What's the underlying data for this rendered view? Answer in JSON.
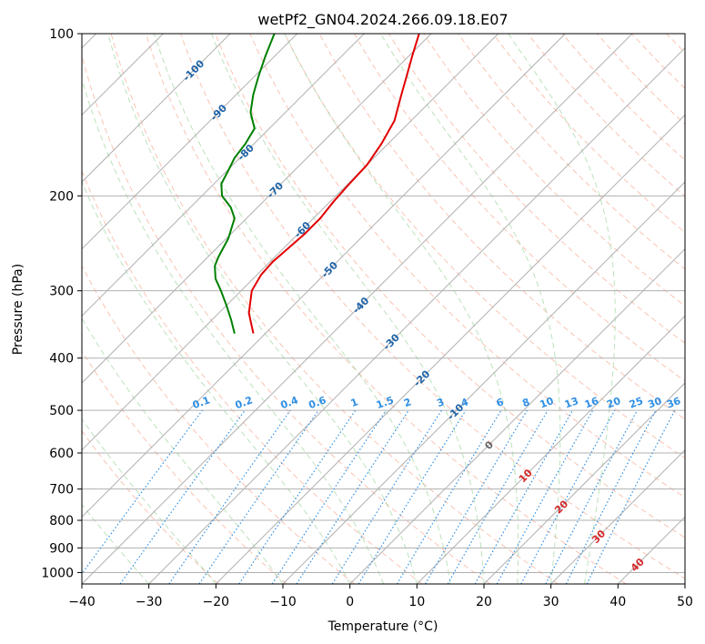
{
  "chart_data": {
    "type": "line",
    "title": "wetPf2_GN04.2024.266.09.18.E07",
    "xlabel": "Temperature (°C)",
    "ylabel": "Pressure (hPa)",
    "xlim": [
      -40,
      50
    ],
    "ylim": [
      1050,
      100
    ],
    "y_scale": "log",
    "x_ticks": [
      -40,
      -30,
      -20,
      -10,
      0,
      10,
      20,
      30,
      40,
      50
    ],
    "x_tick_labels": [
      "−40",
      "−30",
      "−20",
      "−10",
      "0",
      "10",
      "20",
      "30",
      "40",
      "50"
    ],
    "y_ticks": [
      1000,
      900,
      800,
      700,
      600,
      500,
      400,
      300,
      200,
      100
    ],
    "y_tick_labels": [
      "1000",
      "900",
      "800",
      "700",
      "600",
      "500",
      "400",
      "300",
      "200",
      "100"
    ],
    "grid": true,
    "skew": 45,
    "series": [
      {
        "color": "#e00000",
        "p": [
          360,
          330,
          300,
          280,
          265,
          250,
          235,
          220,
          205,
          190,
          175,
          160,
          145,
          130,
          120,
          110,
          100
        ],
        "t": [
          -51.8,
          -55.5,
          -58.4,
          -59.4,
          -59.6,
          -59.3,
          -59.0,
          -59.0,
          -59.5,
          -59.8,
          -60.0,
          -61.0,
          -62.5,
          -65.3,
          -67.3,
          -69.5,
          -71.8
        ]
      },
      {
        "color": "#008000",
        "p": [
          360,
          340,
          320,
          300,
          285,
          270,
          260,
          240,
          220,
          210,
          200,
          190,
          180,
          170,
          160,
          150,
          140,
          130,
          120,
          110,
          100
        ],
        "t": [
          -54.6,
          -57.1,
          -59.9,
          -63.0,
          -65.6,
          -67.6,
          -68.4,
          -69.7,
          -71.8,
          -74.0,
          -77.0,
          -78.9,
          -79.8,
          -80.8,
          -81.3,
          -82.2,
          -85.2,
          -87.4,
          -89.4,
          -91.4,
          -93.4
        ]
      }
    ],
    "dry_adiabat_theta_K": [
      250,
      260,
      270,
      280,
      290,
      300,
      310,
      320,
      330,
      340,
      350,
      360,
      370,
      380,
      390,
      400,
      410,
      420,
      430,
      440,
      450,
      460,
      470,
      480,
      490,
      500,
      510,
      520,
      530
    ],
    "moist_adiabat_start_C": [
      -30,
      -20,
      -10,
      0,
      5,
      10,
      15,
      20,
      25,
      30,
      35
    ],
    "mixing_ratio_lines": [
      {
        "label": "0.1",
        "w": 0.1
      },
      {
        "label": "0.2",
        "w": 0.2
      },
      {
        "label": "0.4",
        "w": 0.4
      },
      {
        "label": "0.6",
        "w": 0.6
      },
      {
        "label": "1",
        "w": 1
      },
      {
        "label": "1.5",
        "w": 1.5
      },
      {
        "label": "2",
        "w": 2
      },
      {
        "label": "3",
        "w": 3
      },
      {
        "label": "4",
        "w": 4
      },
      {
        "label": "6",
        "w": 6
      },
      {
        "label": "8",
        "w": 8
      },
      {
        "label": "10",
        "w": 10
      },
      {
        "label": "13",
        "w": 13
      },
      {
        "label": "16",
        "w": 16
      },
      {
        "label": "20",
        "w": 20
      },
      {
        "label": "25",
        "w": 25
      },
      {
        "label": "30",
        "w": 30
      },
      {
        "label": "36",
        "w": 36
      }
    ],
    "isotherm_labels": [
      {
        "text": "-100",
        "t": -100,
        "p": 117,
        "color": "blue"
      },
      {
        "text": "-90",
        "t": -90,
        "p": 140,
        "color": "blue"
      },
      {
        "text": "-80",
        "t": -80,
        "p": 166,
        "color": "blue"
      },
      {
        "text": "-70",
        "t": -70,
        "p": 195,
        "color": "blue"
      },
      {
        "text": "-60",
        "t": -60,
        "p": 231,
        "color": "blue"
      },
      {
        "text": "-50",
        "t": -50,
        "p": 274,
        "color": "blue"
      },
      {
        "text": "-40",
        "t": -40,
        "p": 319,
        "color": "blue"
      },
      {
        "text": "-30",
        "t": -30,
        "p": 373,
        "color": "blue"
      },
      {
        "text": "-20",
        "t": -20,
        "p": 436,
        "color": "blue"
      },
      {
        "text": "-10",
        "t": -10,
        "p": 503,
        "color": "blue"
      },
      {
        "text": "0",
        "t": 0,
        "p": 580,
        "color": "gray"
      },
      {
        "text": "10",
        "t": 10,
        "p": 661,
        "color": "red"
      },
      {
        "text": "20",
        "t": 20,
        "p": 755,
        "color": "red"
      },
      {
        "text": "30",
        "t": 30,
        "p": 857,
        "color": "red"
      },
      {
        "text": "40",
        "t": 40,
        "p": 967,
        "color": "red"
      }
    ]
  }
}
